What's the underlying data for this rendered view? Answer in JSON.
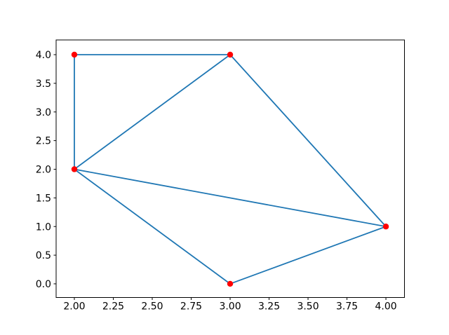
{
  "figure": {
    "background": "#ffffff"
  },
  "chart_data": {
    "type": "scatter",
    "title": "",
    "xlabel": "",
    "ylabel": "",
    "description": "Triangulated graph: 5 red point markers connected by blue edges (Delaunay-style triangulation)",
    "points": [
      {
        "x": 2,
        "y": 4
      },
      {
        "x": 3,
        "y": 4
      },
      {
        "x": 2,
        "y": 2
      },
      {
        "x": 4,
        "y": 1
      },
      {
        "x": 3,
        "y": 0
      }
    ],
    "edges": [
      [
        0,
        1
      ],
      [
        0,
        2
      ],
      [
        1,
        2
      ],
      [
        1,
        3
      ],
      [
        2,
        3
      ],
      [
        2,
        4
      ],
      [
        3,
        4
      ]
    ],
    "xlim": [
      1.883,
      4.119
    ],
    "ylim": [
      -0.239,
      4.257
    ],
    "xticks": {
      "values": [
        2.0,
        2.25,
        2.5,
        2.75,
        3.0,
        3.25,
        3.5,
        3.75,
        4.0
      ],
      "labels": [
        "2.00",
        "2.25",
        "2.50",
        "2.75",
        "3.00",
        "3.25",
        "3.50",
        "3.75",
        "4.00"
      ]
    },
    "yticks": {
      "values": [
        0.0,
        0.5,
        1.0,
        1.5,
        2.0,
        2.5,
        3.0,
        3.5,
        4.0
      ],
      "labels": [
        "0.0",
        "0.5",
        "1.0",
        "1.5",
        "2.0",
        "2.5",
        "3.0",
        "3.5",
        "4.0"
      ]
    },
    "grid": false,
    "legend": null,
    "colors": {
      "edge_line": "#1f77b4",
      "node_marker": "#ff0000",
      "spine": "#000000",
      "tick": "#000000",
      "tick_label": "#000000"
    }
  }
}
